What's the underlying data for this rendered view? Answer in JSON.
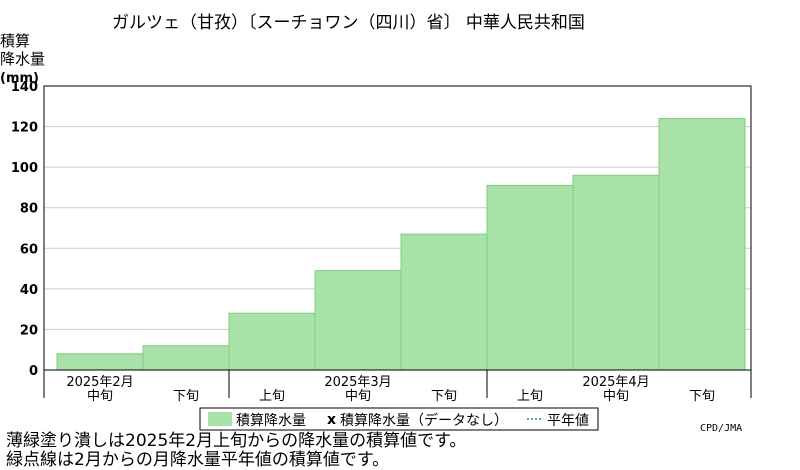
{
  "chart_data": {
    "type": "bar",
    "title": "ガルツェ（甘孜）〔スーチョワン（四川）省〕 中華人民共和国",
    "ylabel_lines": [
      "積算",
      "降水量",
      "(mm)"
    ],
    "ylim": [
      0,
      140
    ],
    "yticks": [
      0,
      20,
      40,
      60,
      80,
      100,
      120,
      140
    ],
    "grid": true,
    "categories": [
      "2月中旬",
      "2月下旬",
      "3月上旬",
      "3月中旬",
      "3月下旬",
      "4月上旬",
      "4月中旬",
      "4月下旬"
    ],
    "x_period_labels": [
      "中旬",
      "下旬",
      "上旬",
      "中旬",
      "下旬",
      "上旬",
      "中旬",
      "下旬"
    ],
    "x_month_labels": [
      {
        "text": "2025年2月",
        "at_index": 0
      },
      {
        "text": "2025年3月",
        "at_index": 3
      },
      {
        "text": "2025年4月",
        "at_index": 6
      }
    ],
    "month_start_indices": [
      2,
      5
    ],
    "series": [
      {
        "name": "積算降水量",
        "values": [
          8,
          12,
          28,
          49,
          67,
          91,
          96,
          124
        ],
        "color": "#a8e2a8",
        "stroke": "#7fcf7f"
      }
    ],
    "legend": {
      "placement": "bottom",
      "entries": [
        {
          "label": "積算降水量",
          "kind": "swatch",
          "color": "#a8e2a8"
        },
        {
          "label": "積算降水量（データなし）",
          "kind": "marker",
          "marker": "x"
        },
        {
          "label": "平年値",
          "kind": "dotted-line"
        }
      ]
    },
    "credit": "CPD/JMA"
  },
  "notes": [
    "薄緑塗り潰しは2025年2月上旬からの降水量の積算値です。",
    "緑点線は2月からの月降水量平年値の積算値です。"
  ]
}
